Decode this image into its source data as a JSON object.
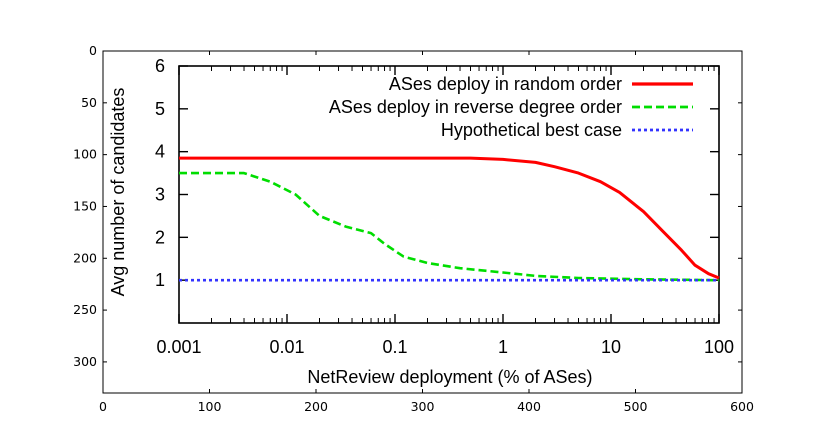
{
  "chart_data": [
    {
      "type": "line",
      "title": "",
      "xlabel": "NetReview deployment (% of ASes)",
      "ylabel": "Avg number of candidates",
      "x_scale": "log",
      "xlim": [
        0.001,
        100
      ],
      "ylim": [
        0,
        6
      ],
      "x_tick_labels": [
        "0.001",
        "0.01",
        "0.1",
        "1",
        "10",
        "100"
      ],
      "y_tick_labels": [
        "1",
        "2",
        "3",
        "4",
        "5",
        "6"
      ],
      "legend_position": "top-right",
      "grid": false,
      "series": [
        {
          "name": "ASes deploy in random order",
          "color": "#ff0000",
          "style": "solid",
          "points": [
            [
              0.001,
              3.85
            ],
            [
              0.01,
              3.85
            ],
            [
              0.1,
              3.85
            ],
            [
              0.5,
              3.85
            ],
            [
              1,
              3.82
            ],
            [
              2,
              3.75
            ],
            [
              3,
              3.65
            ],
            [
              5,
              3.5
            ],
            [
              8,
              3.3
            ],
            [
              12,
              3.05
            ],
            [
              20,
              2.6
            ],
            [
              30,
              2.15
            ],
            [
              45,
              1.7
            ],
            [
              60,
              1.35
            ],
            [
              80,
              1.15
            ],
            [
              100,
              1.05
            ]
          ]
        },
        {
          "name": "ASes deploy in reverse degree order",
          "color": "#00dd00",
          "style": "dashed",
          "points": [
            [
              0.001,
              3.5
            ],
            [
              0.004,
              3.5
            ],
            [
              0.007,
              3.3
            ],
            [
              0.012,
              3.0
            ],
            [
              0.02,
              2.5
            ],
            [
              0.035,
              2.25
            ],
            [
              0.06,
              2.1
            ],
            [
              0.08,
              1.85
            ],
            [
              0.12,
              1.55
            ],
            [
              0.2,
              1.4
            ],
            [
              0.4,
              1.28
            ],
            [
              1,
              1.18
            ],
            [
              2,
              1.1
            ],
            [
              5,
              1.05
            ],
            [
              20,
              1.02
            ],
            [
              100,
              1.0
            ]
          ]
        },
        {
          "name": "Hypothetical best case",
          "color": "#3333ff",
          "style": "dotted",
          "points": [
            [
              0.001,
              1.0
            ],
            [
              100,
              1.0
            ]
          ]
        }
      ]
    },
    {
      "type": "line",
      "title": "",
      "xlabel": "",
      "ylabel": "",
      "xlim": [
        0,
        600
      ],
      "ylim": [
        0,
        330
      ],
      "x_tick_labels": [
        "0",
        "100",
        "200",
        "300",
        "400",
        "500",
        "600"
      ],
      "y_tick_labels": [
        "0",
        "50",
        "100",
        "150",
        "200",
        "250",
        "300"
      ],
      "y_inverted": true,
      "grid": false,
      "series": []
    }
  ]
}
